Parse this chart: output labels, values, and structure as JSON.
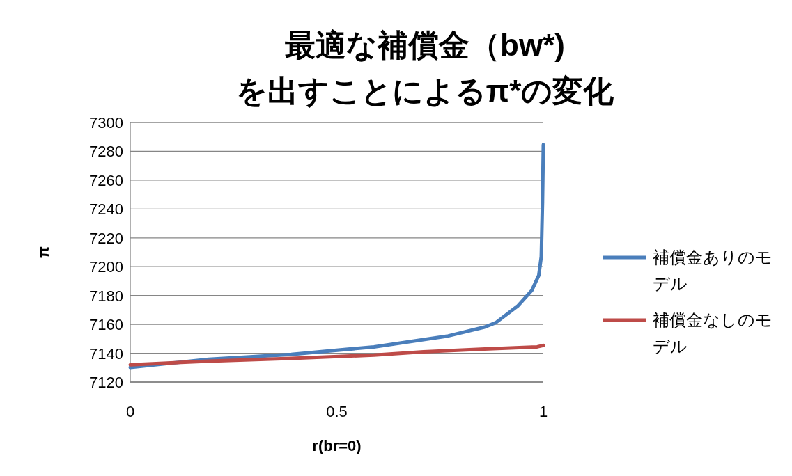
{
  "chart_data": {
    "type": "line",
    "title": "最適な補償金（bw*)\nを出すことによるπ*の変化",
    "xlabel": "r(br=0)",
    "ylabel": "π",
    "xlim": [
      0,
      1
    ],
    "xticks": [
      0,
      0.5,
      1
    ],
    "ylim": [
      7120,
      7300
    ],
    "yticks": [
      7120,
      7140,
      7160,
      7180,
      7200,
      7220,
      7240,
      7260,
      7280,
      7300
    ],
    "grid": "y",
    "legend": "right",
    "marker": "none",
    "line_style": "solid",
    "series": [
      {
        "name": "補償金ありのモデル",
        "color": "#4a7ebb",
        "x": [
          0,
          0.19,
          0.39,
          0.59,
          0.69,
          0.77,
          0.858,
          0.885,
          0.939,
          0.972,
          0.989,
          0.995,
          0.998,
          1
        ],
        "values": [
          7130.1,
          7135.8,
          7139.2,
          7144.4,
          7148.6,
          7152,
          7158.1,
          7161.2,
          7173,
          7183.5,
          7194,
          7207,
          7245,
          7284.6
        ]
      },
      {
        "name": "補償金なしのモデル",
        "color": "#be4b48",
        "x": [
          0,
          0.19,
          0.39,
          0.59,
          0.71,
          0.858,
          0.985,
          1
        ],
        "values": [
          7132,
          7134.5,
          7136.4,
          7138.7,
          7141,
          7142.9,
          7144.4,
          7145.4
        ]
      }
    ]
  }
}
